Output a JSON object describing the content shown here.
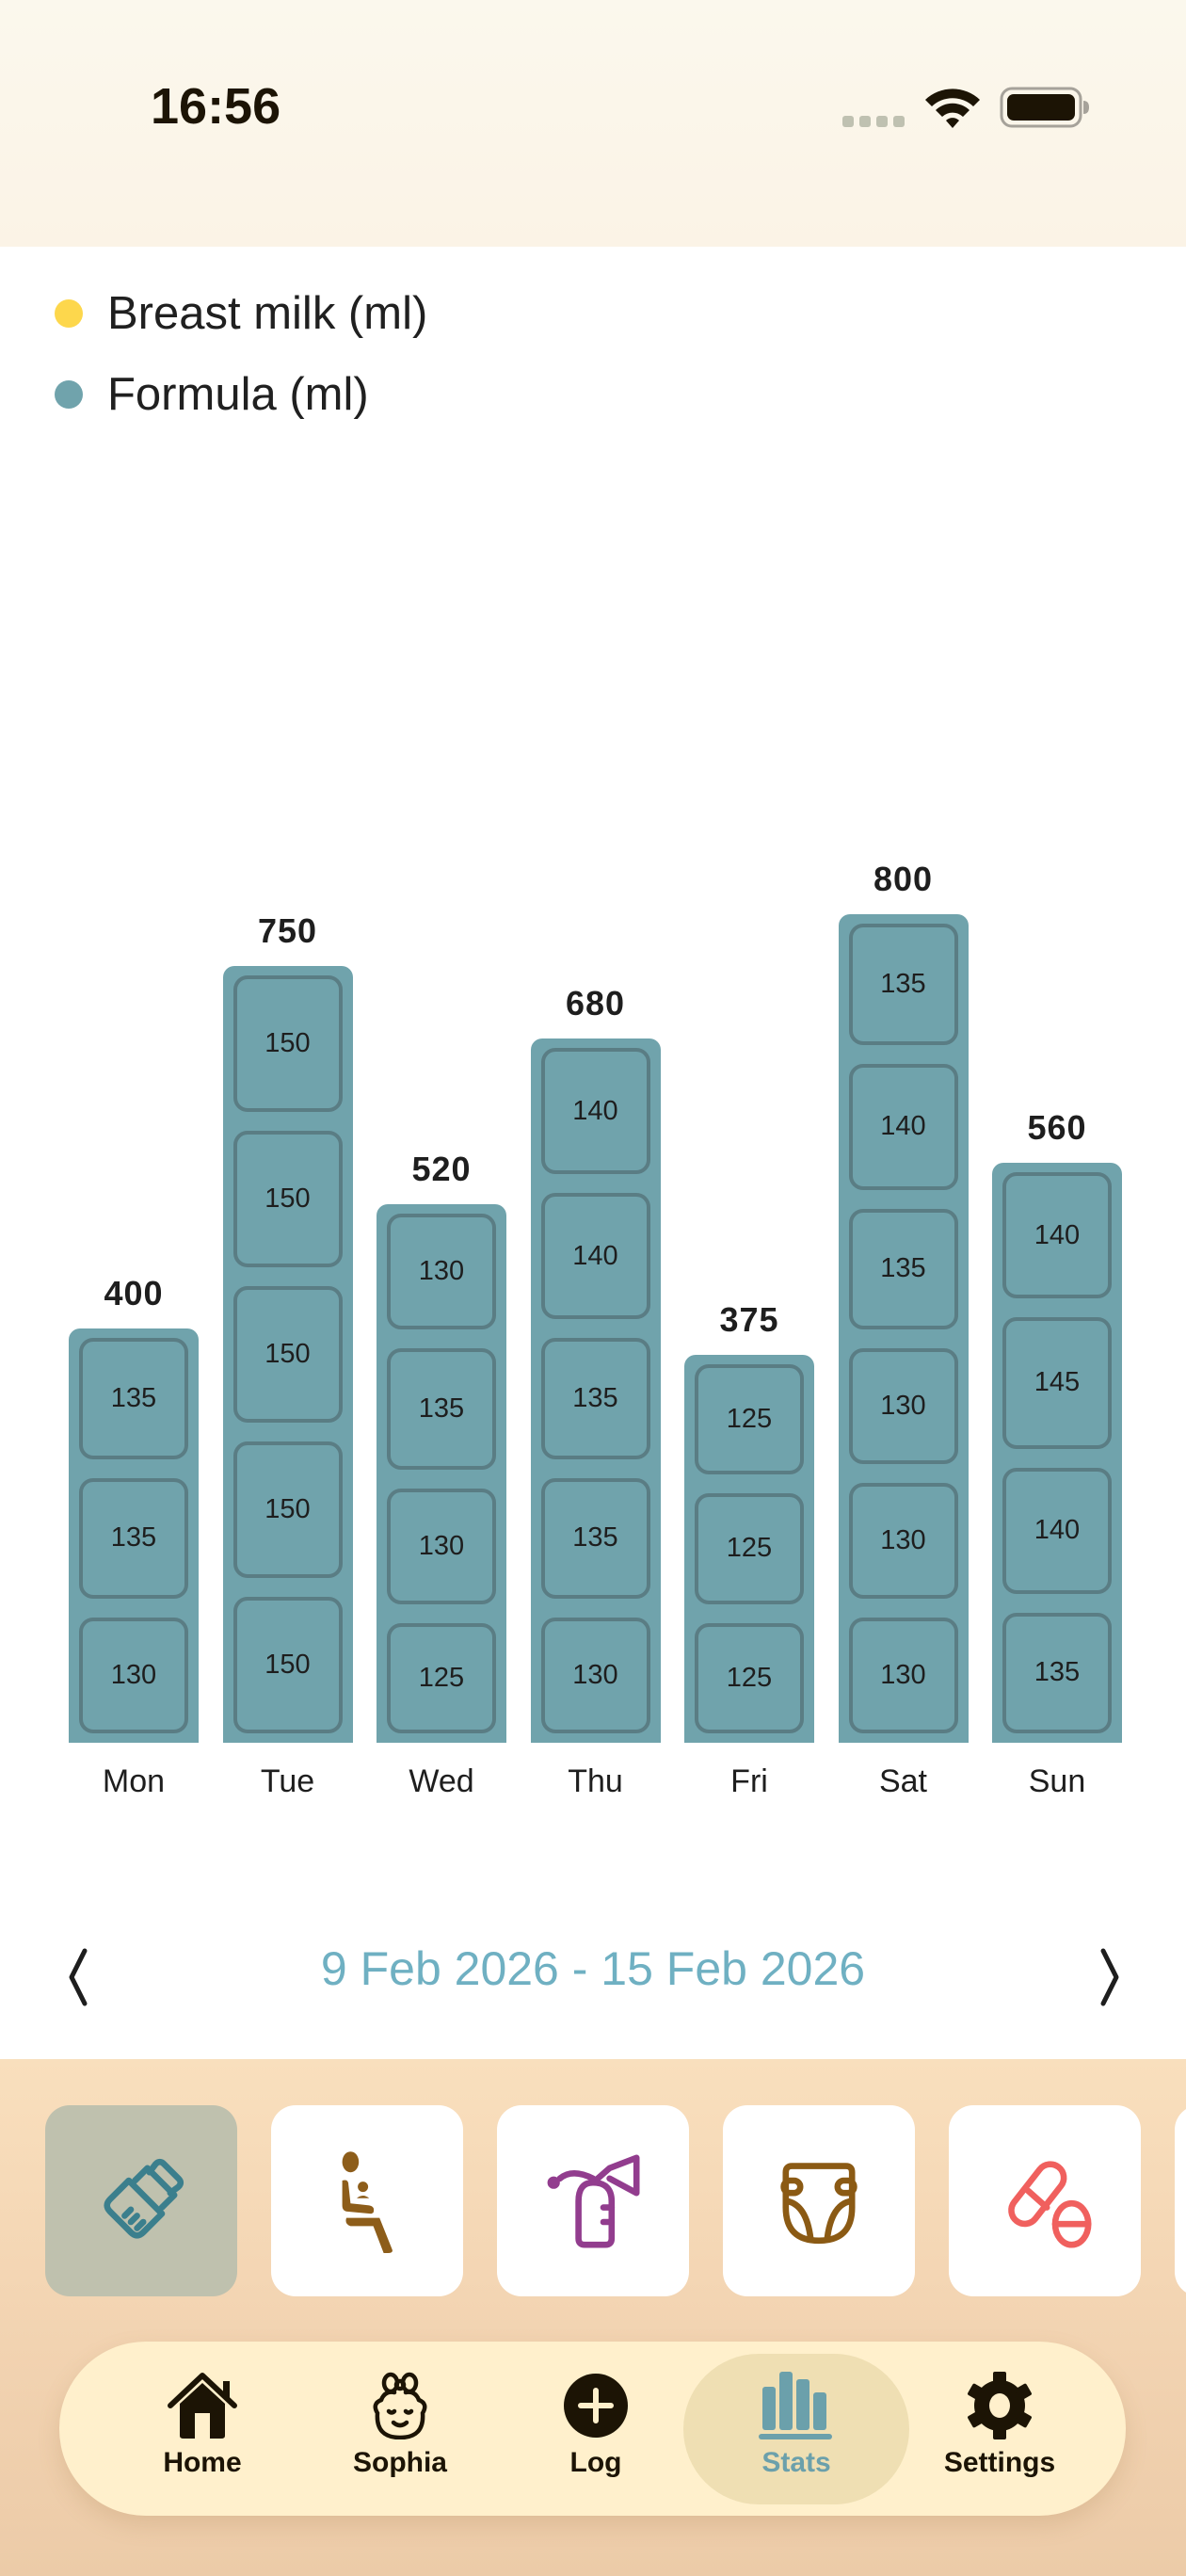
{
  "status_bar": {
    "time": "16:56",
    "icons": [
      "signal-dots",
      "wifi-icon",
      "battery-icon"
    ]
  },
  "legend": [
    {
      "label": "Breast milk (ml)",
      "color": "#fdd74c"
    },
    {
      "label": "Formula (ml)",
      "color": "#70a3ac"
    }
  ],
  "chart_data": {
    "type": "bar",
    "stacked": true,
    "title": "",
    "xlabel": "",
    "ylabel": "",
    "categories": [
      "Mon",
      "Tue",
      "Wed",
      "Thu",
      "Fri",
      "Sat",
      "Sun"
    ],
    "series": [
      {
        "name": "Breast milk (ml)",
        "color": "#fdd74c",
        "values": [
          0,
          0,
          0,
          0,
          0,
          0,
          0
        ]
      },
      {
        "name": "Formula (ml)",
        "color": "#70a3ac",
        "values": [
          400,
          750,
          520,
          680,
          375,
          800,
          560
        ]
      }
    ],
    "totals": [
      400,
      750,
      520,
      680,
      375,
      800,
      560
    ],
    "segments": [
      [
        130,
        135,
        135
      ],
      [
        150,
        150,
        150,
        150,
        150
      ],
      [
        125,
        130,
        135,
        130
      ],
      [
        130,
        135,
        135,
        140,
        140
      ],
      [
        125,
        125,
        125
      ],
      [
        130,
        130,
        130,
        135,
        140,
        135
      ],
      [
        135,
        140,
        145,
        140
      ]
    ],
    "grid": false,
    "legend_position": "top-left"
  },
  "date_nav": {
    "range": "9 Feb 2026 - 15 Feb 2026",
    "prev_icon": "chevron-left-icon",
    "next_icon": "chevron-right-icon"
  },
  "categories": [
    {
      "name": "bottle",
      "icon": "baby-bottle-icon",
      "color": "#3b7f8d",
      "active": true
    },
    {
      "name": "breastfeeding",
      "icon": "breastfeeding-icon",
      "color": "#8d5d1a",
      "active": false
    },
    {
      "name": "pump",
      "icon": "breast-pump-icon",
      "color": "#923d8e",
      "active": false
    },
    {
      "name": "diaper",
      "icon": "diaper-icon",
      "color": "#8b5a14",
      "active": false
    },
    {
      "name": "medicine",
      "icon": "pills-icon",
      "color": "#f0605e",
      "active": false
    }
  ],
  "tabbar": {
    "tabs": [
      {
        "label": "Home",
        "icon": "home-icon"
      },
      {
        "label": "Sophia",
        "icon": "baby-face-icon"
      },
      {
        "label": "Log",
        "icon": "plus-circle-icon"
      },
      {
        "label": "Stats",
        "icon": "bar-chart-icon",
        "active": true
      },
      {
        "label": "Settings",
        "icon": "gear-icon"
      }
    ]
  },
  "colors": {
    "accent": "#70a3ac",
    "date_text": "#6fb0c2",
    "tray": "#f9dfbd",
    "tabbar": "#fff0cc"
  }
}
